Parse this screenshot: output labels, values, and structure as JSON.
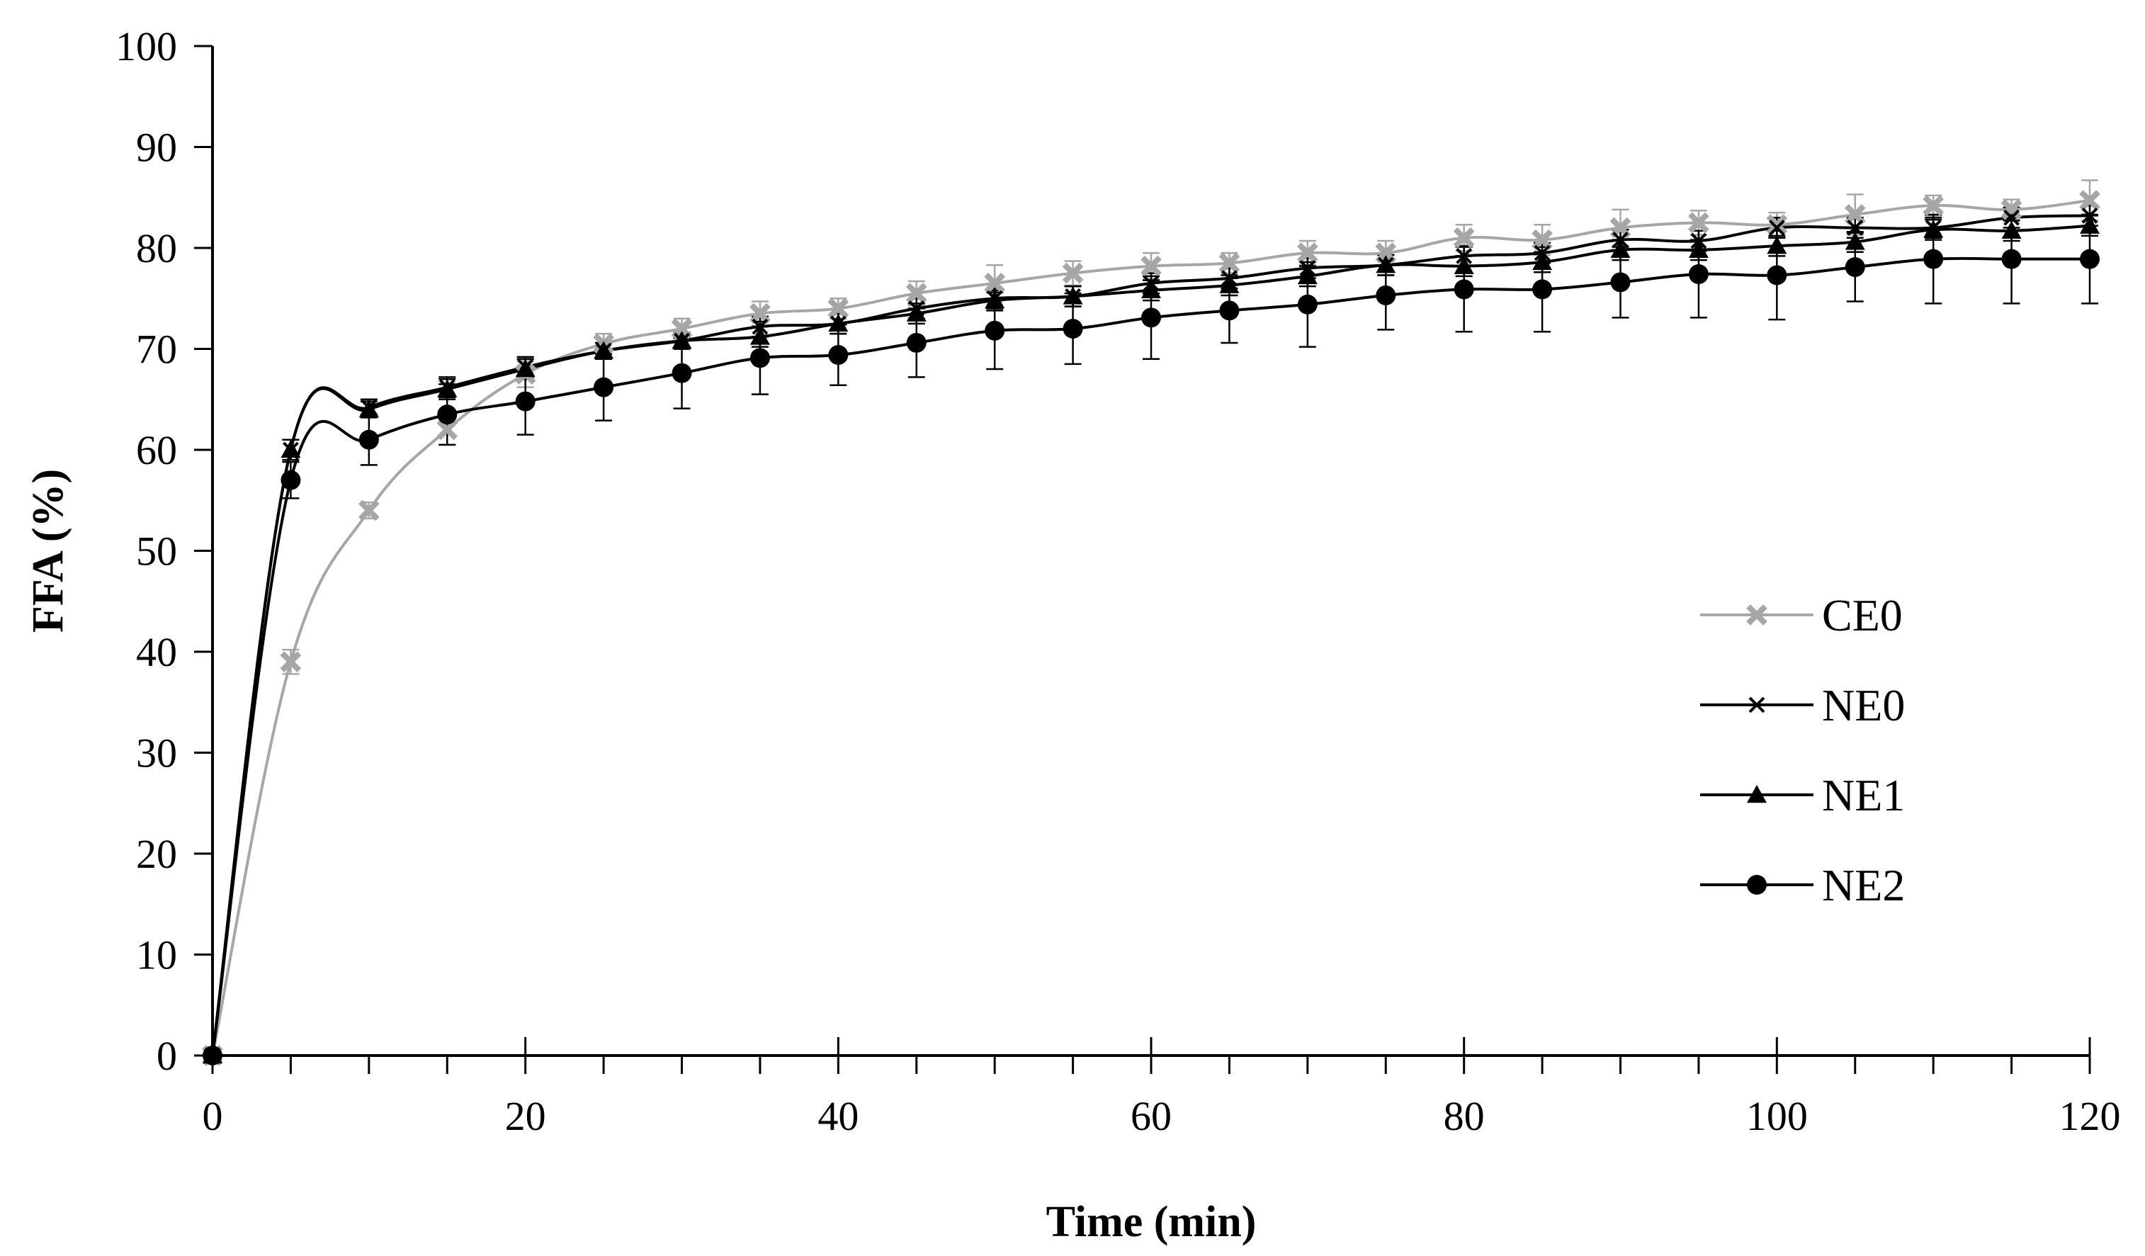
{
  "chart_data": {
    "type": "line",
    "title": "",
    "xlabel": "Time (min)",
    "ylabel": "FFA (%)",
    "xlim": [
      0,
      120
    ],
    "ylim": [
      0,
      100
    ],
    "xticks": [
      0,
      20,
      40,
      60,
      80,
      100,
      120
    ],
    "yticks": [
      0,
      10,
      20,
      30,
      40,
      50,
      60,
      70,
      80,
      90,
      100
    ],
    "grid": false,
    "legend_position": "right",
    "x": [
      0,
      5,
      10,
      15,
      20,
      25,
      30,
      35,
      40,
      45,
      50,
      55,
      60,
      65,
      70,
      75,
      80,
      85,
      90,
      95,
      100,
      105,
      110,
      115,
      120
    ],
    "series": [
      {
        "name": "CE0",
        "color": "#a6a6a6",
        "marker": "x-bold",
        "values": [
          0,
          39,
          54,
          62,
          67.5,
          70.5,
          72,
          73.5,
          74,
          75.5,
          76.5,
          77.5,
          78.2,
          78.5,
          79.5,
          79.5,
          81,
          80.8,
          82,
          82.5,
          82.3,
          83.3,
          84.2,
          83.8,
          84.7
        ],
        "errors": [
          0,
          1.2,
          0.8,
          1.5,
          1.3,
          1.0,
          1.0,
          1.2,
          1.0,
          1.2,
          1.8,
          1.2,
          1.3,
          1.0,
          1.2,
          1.2,
          1.3,
          1.5,
          1.8,
          1.2,
          1.2,
          2.0,
          1.0,
          1.0,
          2.0
        ]
      },
      {
        "name": "NE0",
        "color": "#000000",
        "marker": "x",
        "values": [
          0,
          60,
          64.2,
          66.2,
          68.2,
          69.8,
          70.8,
          72.2,
          72.5,
          74,
          75,
          75.2,
          76.5,
          77,
          78,
          78.3,
          79.2,
          79.5,
          80.8,
          80.7,
          82,
          82,
          82,
          83,
          83.2
        ],
        "errors": [
          0,
          1.0,
          0.8,
          1.0,
          1.0,
          0.8,
          0.8,
          1.0,
          1.0,
          1.0,
          1.0,
          1.0,
          1.0,
          1.0,
          1.0,
          1.0,
          1.0,
          1.0,
          1.0,
          1.0,
          1.0,
          1.0,
          1.0,
          1.0,
          1.0
        ]
      },
      {
        "name": "NE1",
        "color": "#000000",
        "marker": "triangle",
        "values": [
          0,
          60,
          64,
          66,
          68,
          69.8,
          70.8,
          71.2,
          72.5,
          73.5,
          74.8,
          75.2,
          75.8,
          76.3,
          77.2,
          78.3,
          78.2,
          78.6,
          79.8,
          79.8,
          80.2,
          80.6,
          81.8,
          81.7,
          82.2
        ],
        "errors": [
          0,
          1.0,
          0.8,
          1.0,
          1.0,
          0.8,
          0.8,
          1.0,
          1.0,
          1.0,
          1.0,
          1.0,
          1.0,
          1.0,
          1.0,
          1.0,
          1.0,
          1.0,
          1.0,
          1.0,
          1.0,
          1.0,
          1.0,
          1.0,
          1.0
        ]
      },
      {
        "name": "NE2",
        "color": "#000000",
        "marker": "circle",
        "values": [
          0,
          57,
          61,
          63.5,
          64.8,
          66.2,
          67.6,
          69.1,
          69.4,
          70.6,
          71.8,
          72,
          73.1,
          73.8,
          74.4,
          75.3,
          75.9,
          75.9,
          76.6,
          77.4,
          77.3,
          78.1,
          78.9,
          78.9,
          78.9
        ],
        "errors": [
          0,
          1.8,
          2.5,
          3.0,
          3.3,
          3.3,
          3.5,
          3.6,
          3.0,
          3.4,
          3.8,
          3.5,
          4.1,
          3.2,
          4.2,
          3.4,
          4.2,
          4.2,
          3.5,
          4.3,
          4.4,
          3.4,
          4.4,
          4.4,
          4.4
        ]
      }
    ]
  }
}
